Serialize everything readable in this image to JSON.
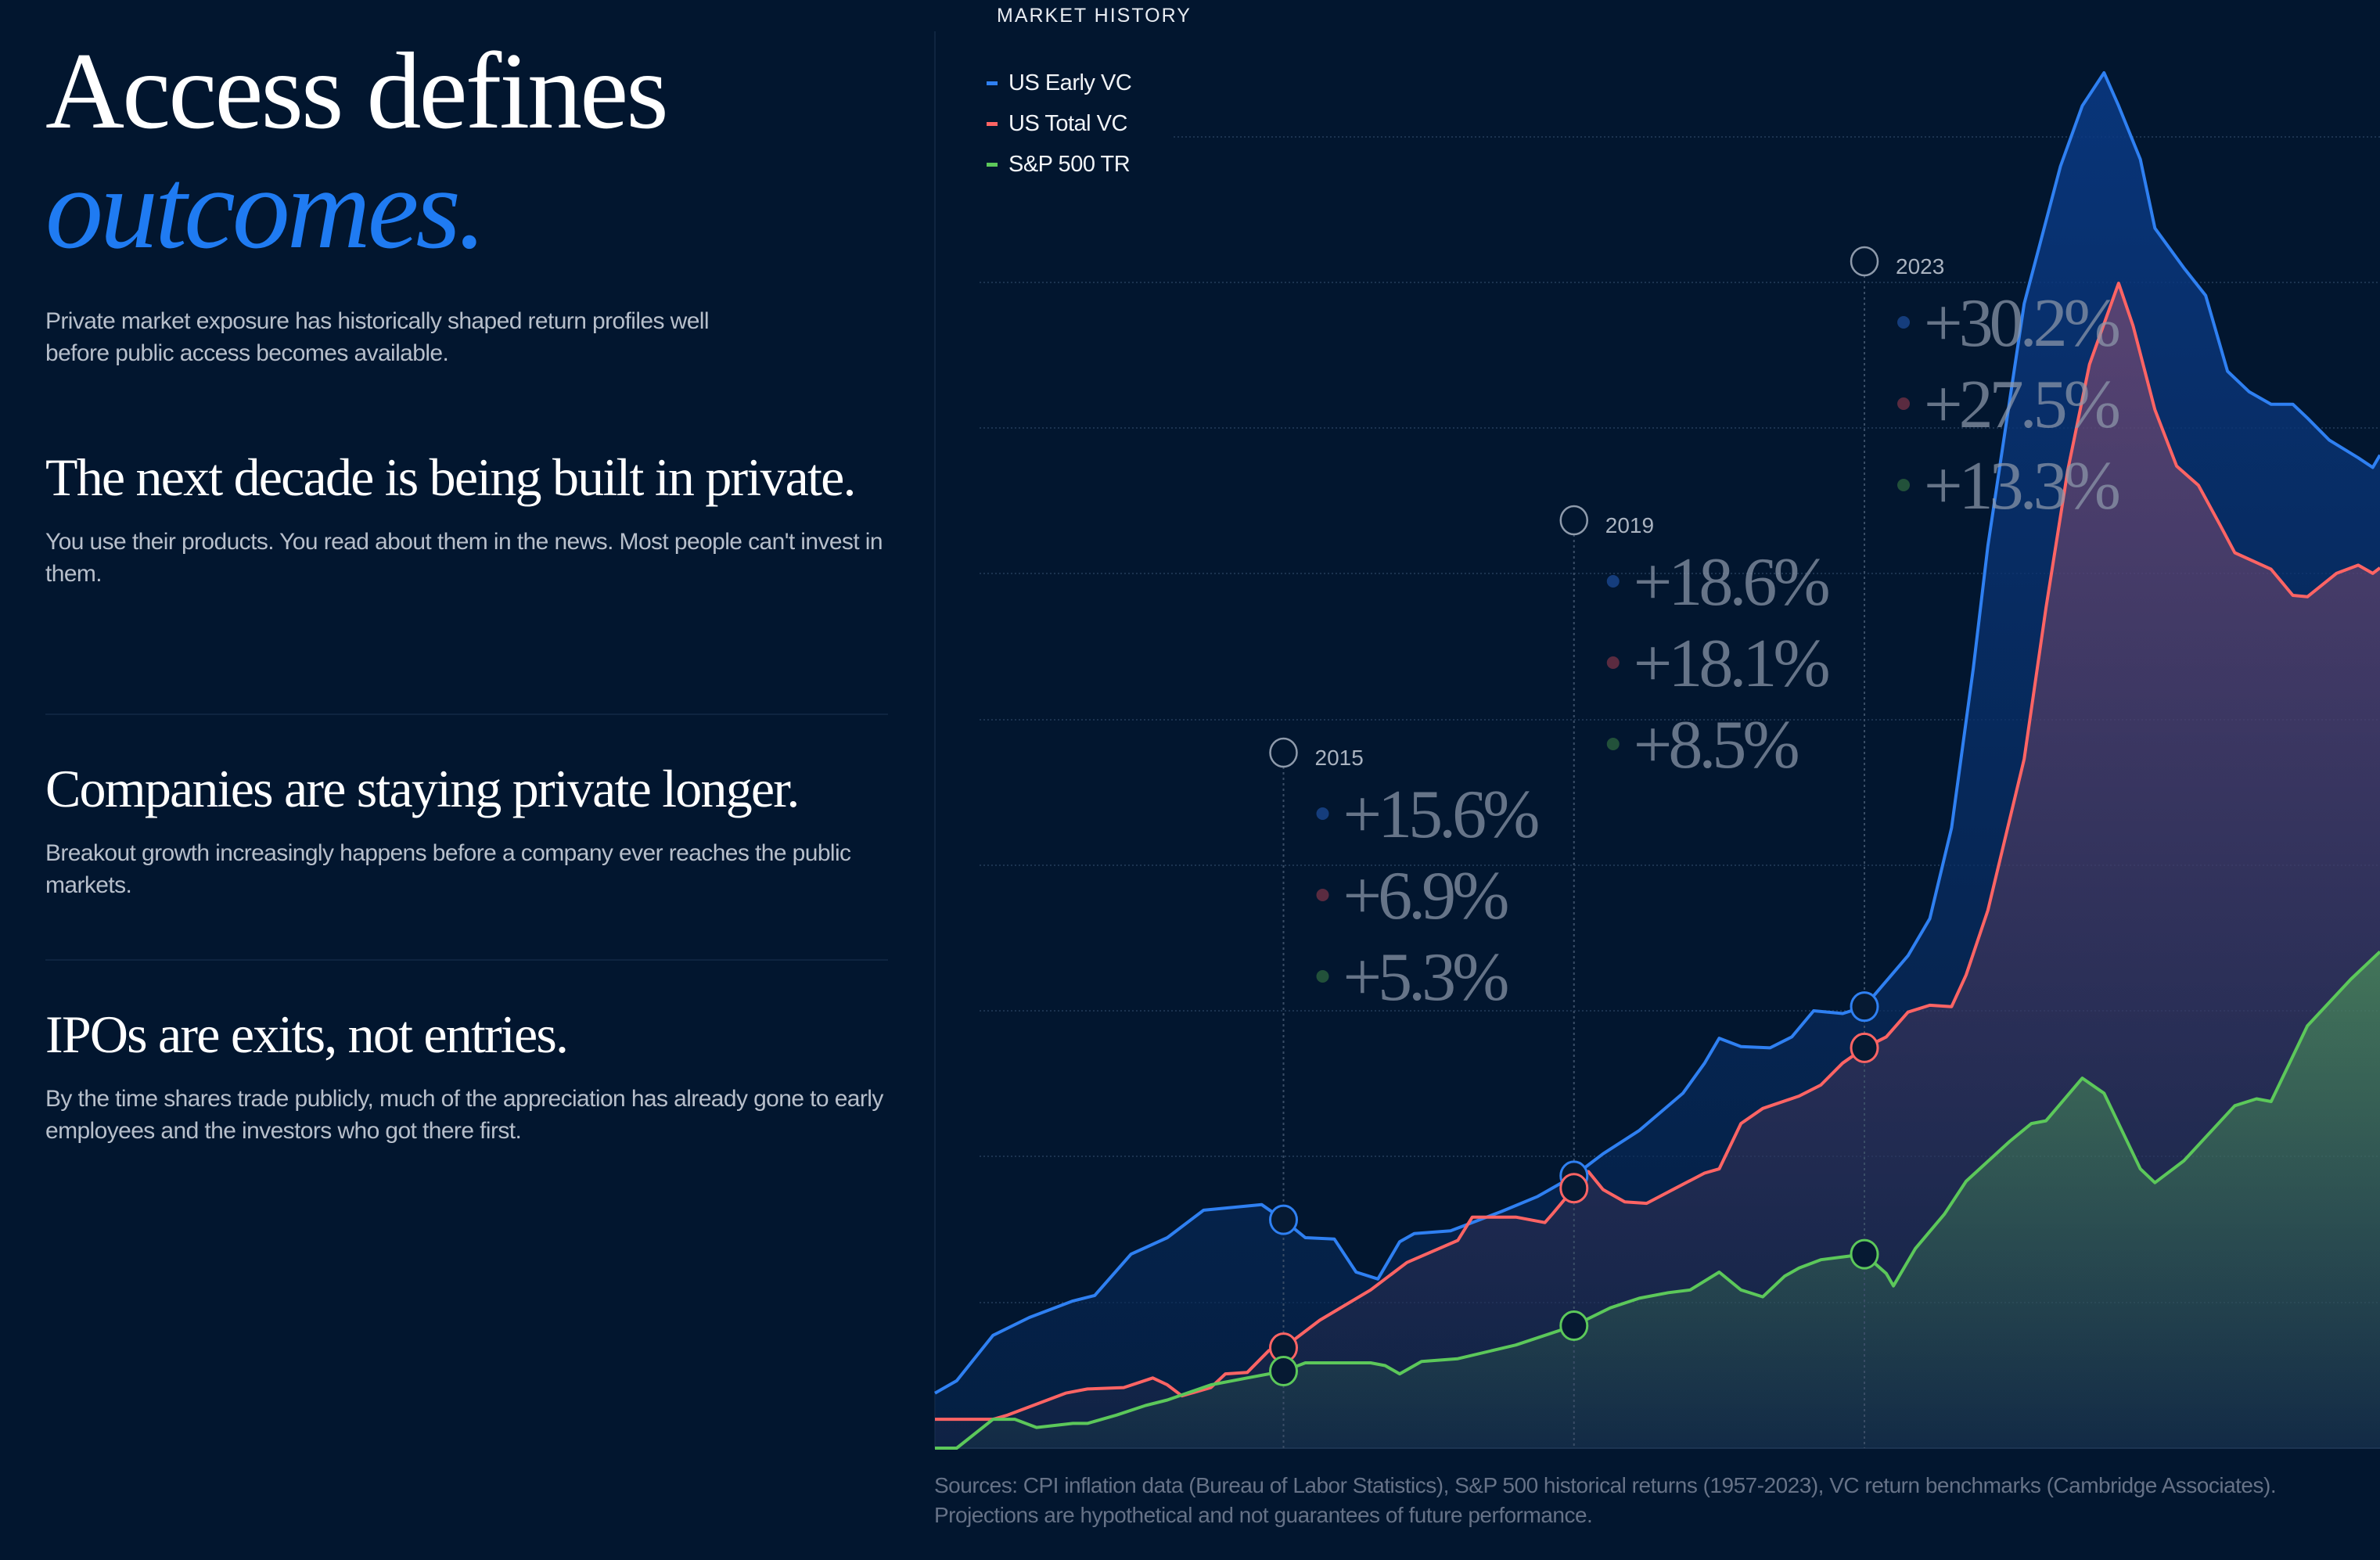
{
  "hero": {
    "title_line1": "Access defines",
    "title_line2": "outcomes.",
    "intro": "Private market exposure has historically shaped return profiles well before public access becomes available."
  },
  "sections": [
    {
      "heading": "The next decade is being built in private.",
      "body": "You use their products. You read about them in the news. Most people can't invest in them."
    },
    {
      "heading": "Companies are staying private longer.",
      "body": "Breakout growth increasingly happens before a company ever reaches the public markets."
    },
    {
      "heading": "IPOs are exits, not entries.",
      "body": "By the time shares trade publicly, much of the appreciation has already gone to early employees and the investors who got there first."
    }
  ],
  "chart_title": "MARKET HISTORY",
  "sources": "Sources: CPI inflation data (Bureau of Labor Statistics), S&P 500 historical returns (1957-2023), VC return benchmarks (Cambridge Associates). Projections are hypothetical and not guarantees of future performance.",
  "colors": {
    "background": "#02162f",
    "accent": "#1f7bf2",
    "us_early_vc": "#2f80f2",
    "us_total_vc": "#ff6464",
    "sp500_tr": "#5cc85a"
  },
  "chart_data": {
    "type": "area",
    "title": "MARKET HISTORY",
    "xlabel": "",
    "ylabel": "",
    "xlim": [
      2010.2,
      2030.1
    ],
    "ylim": [
      0,
      100
    ],
    "grid": true,
    "legend_position": "top-left",
    "series": [
      {
        "name": "US Early VC",
        "color": "#2f80f2",
        "points": [
          [
            2010.2,
            4.0
          ],
          [
            2010.5,
            4.9
          ],
          [
            2011.0,
            8.2
          ],
          [
            2011.5,
            9.5
          ],
          [
            2012.1,
            10.7
          ],
          [
            2012.4,
            11.1
          ],
          [
            2012.9,
            14.1
          ],
          [
            2013.4,
            15.3
          ],
          [
            2013.9,
            17.3
          ],
          [
            2014.7,
            17.7
          ],
          [
            2015.0,
            16.6
          ],
          [
            2015.3,
            15.3
          ],
          [
            2015.7,
            15.2
          ],
          [
            2016.0,
            12.8
          ],
          [
            2016.3,
            12.3
          ],
          [
            2016.6,
            15.0
          ],
          [
            2016.8,
            15.6
          ],
          [
            2017.3,
            15.8
          ],
          [
            2018.0,
            17.2
          ],
          [
            2018.5,
            18.3
          ],
          [
            2019.0,
            19.8
          ],
          [
            2019.4,
            21.4
          ],
          [
            2019.9,
            23.1
          ],
          [
            2020.5,
            25.8
          ],
          [
            2020.8,
            28.0
          ],
          [
            2021.0,
            29.8
          ],
          [
            2021.3,
            29.2
          ],
          [
            2021.7,
            29.1
          ],
          [
            2022.0,
            29.9
          ],
          [
            2022.3,
            31.8
          ],
          [
            2022.7,
            31.6
          ],
          [
            2023.0,
            32.1
          ],
          [
            2023.6,
            35.8
          ],
          [
            2023.9,
            38.5
          ],
          [
            2024.2,
            45.1
          ],
          [
            2024.5,
            56.7
          ],
          [
            2024.7,
            65.6
          ],
          [
            2025.2,
            83.2
          ],
          [
            2025.7,
            93.2
          ],
          [
            2026.0,
            97.6
          ],
          [
            2026.3,
            100
          ],
          [
            2026.5,
            97.6
          ],
          [
            2026.8,
            93.7
          ],
          [
            2027.0,
            88.7
          ],
          [
            2027.4,
            85.8
          ],
          [
            2027.7,
            83.8
          ],
          [
            2028.0,
            78.3
          ],
          [
            2028.3,
            76.8
          ],
          [
            2028.6,
            75.9
          ],
          [
            2028.9,
            75.9
          ],
          [
            2029.1,
            74.9
          ],
          [
            2029.4,
            73.3
          ],
          [
            2029.8,
            72.0
          ],
          [
            2030.0,
            71.3
          ],
          [
            2030.1,
            72.2
          ]
        ]
      },
      {
        "name": "US Total VC",
        "color": "#ff6464",
        "points": [
          [
            2010.2,
            2.1
          ],
          [
            2011.0,
            2.1
          ],
          [
            2011.2,
            2.4
          ],
          [
            2012.0,
            4.0
          ],
          [
            2012.3,
            4.3
          ],
          [
            2012.8,
            4.4
          ],
          [
            2013.2,
            5.1
          ],
          [
            2013.4,
            4.6
          ],
          [
            2013.6,
            3.8
          ],
          [
            2014.0,
            4.4
          ],
          [
            2014.2,
            5.4
          ],
          [
            2014.5,
            5.5
          ],
          [
            2014.8,
            7.1
          ],
          [
            2015.0,
            7.3
          ],
          [
            2015.5,
            9.3
          ],
          [
            2016.2,
            11.5
          ],
          [
            2016.7,
            13.5
          ],
          [
            2017.4,
            15.1
          ],
          [
            2017.6,
            16.8
          ],
          [
            2018.2,
            16.8
          ],
          [
            2018.6,
            16.4
          ],
          [
            2018.7,
            17.0
          ],
          [
            2019.0,
            18.9
          ],
          [
            2019.2,
            20.1
          ],
          [
            2019.4,
            18.8
          ],
          [
            2019.7,
            17.9
          ],
          [
            2020.0,
            17.8
          ],
          [
            2020.4,
            18.9
          ],
          [
            2020.8,
            20.0
          ],
          [
            2021.0,
            20.3
          ],
          [
            2021.3,
            23.6
          ],
          [
            2021.6,
            24.7
          ],
          [
            2022.1,
            25.6
          ],
          [
            2022.4,
            26.4
          ],
          [
            2022.7,
            28.0
          ],
          [
            2023.0,
            29.1
          ],
          [
            2023.3,
            29.9
          ],
          [
            2023.6,
            31.7
          ],
          [
            2023.9,
            32.2
          ],
          [
            2024.2,
            32.1
          ],
          [
            2024.4,
            34.4
          ],
          [
            2024.7,
            39.1
          ],
          [
            2025.2,
            50.1
          ],
          [
            2025.5,
            61.1
          ],
          [
            2025.8,
            71.1
          ],
          [
            2026.1,
            78.8
          ],
          [
            2026.5,
            84.7
          ],
          [
            2026.7,
            81.6
          ],
          [
            2027.0,
            75.5
          ],
          [
            2027.3,
            71.4
          ],
          [
            2027.6,
            70.0
          ],
          [
            2027.9,
            67.1
          ],
          [
            2028.1,
            65.1
          ],
          [
            2028.6,
            63.9
          ],
          [
            2028.9,
            62.0
          ],
          [
            2029.1,
            61.9
          ],
          [
            2029.5,
            63.6
          ],
          [
            2029.8,
            64.2
          ],
          [
            2030.0,
            63.6
          ],
          [
            2030.1,
            64.0
          ]
        ]
      },
      {
        "name": "S&P 500 TR",
        "color": "#5cc85a",
        "points": [
          [
            2010.2,
            0
          ],
          [
            2010.5,
            0
          ],
          [
            2011.0,
            2.1
          ],
          [
            2011.3,
            2.1
          ],
          [
            2011.6,
            1.5
          ],
          [
            2012.1,
            1.8
          ],
          [
            2012.3,
            1.8
          ],
          [
            2012.7,
            2.4
          ],
          [
            2013.1,
            3.1
          ],
          [
            2013.4,
            3.5
          ],
          [
            2014.0,
            4.6
          ],
          [
            2014.5,
            5.1
          ],
          [
            2015.0,
            5.6
          ],
          [
            2015.3,
            6.2
          ],
          [
            2015.5,
            6.2
          ],
          [
            2016.2,
            6.2
          ],
          [
            2016.4,
            6.0
          ],
          [
            2016.6,
            5.4
          ],
          [
            2016.9,
            6.3
          ],
          [
            2017.4,
            6.5
          ],
          [
            2018.2,
            7.5
          ],
          [
            2019.0,
            8.9
          ],
          [
            2019.5,
            10.2
          ],
          [
            2019.9,
            10.9
          ],
          [
            2020.3,
            11.3
          ],
          [
            2020.6,
            11.5
          ],
          [
            2021.0,
            12.8
          ],
          [
            2021.3,
            11.5
          ],
          [
            2021.6,
            11.0
          ],
          [
            2021.9,
            12.5
          ],
          [
            2022.1,
            13.1
          ],
          [
            2022.4,
            13.7
          ],
          [
            2022.7,
            13.9
          ],
          [
            2023.0,
            14.1
          ],
          [
            2023.3,
            12.7
          ],
          [
            2023.4,
            11.8
          ],
          [
            2023.7,
            14.5
          ],
          [
            2024.1,
            17.0
          ],
          [
            2024.4,
            19.4
          ],
          [
            2025.0,
            22.3
          ],
          [
            2025.3,
            23.6
          ],
          [
            2025.5,
            23.8
          ],
          [
            2026.0,
            26.9
          ],
          [
            2026.3,
            25.8
          ],
          [
            2026.8,
            20.3
          ],
          [
            2027.0,
            19.3
          ],
          [
            2027.4,
            20.9
          ],
          [
            2028.1,
            24.9
          ],
          [
            2028.4,
            25.4
          ],
          [
            2028.6,
            25.2
          ],
          [
            2029.1,
            30.7
          ],
          [
            2029.7,
            34.1
          ],
          [
            2030.1,
            36.1
          ]
        ]
      }
    ],
    "annotations": [
      {
        "year": "2015",
        "x": 2015.0,
        "values": [
          "+15.6%",
          "+6.9%",
          "+5.3%"
        ]
      },
      {
        "year": "2019",
        "x": 2019.0,
        "values": [
          "+18.6%",
          "+18.1%",
          "+8.5%"
        ]
      },
      {
        "year": "2023",
        "x": 2023.0,
        "values": [
          "+30.2%",
          "+27.5%",
          "+13.3%"
        ]
      }
    ]
  }
}
